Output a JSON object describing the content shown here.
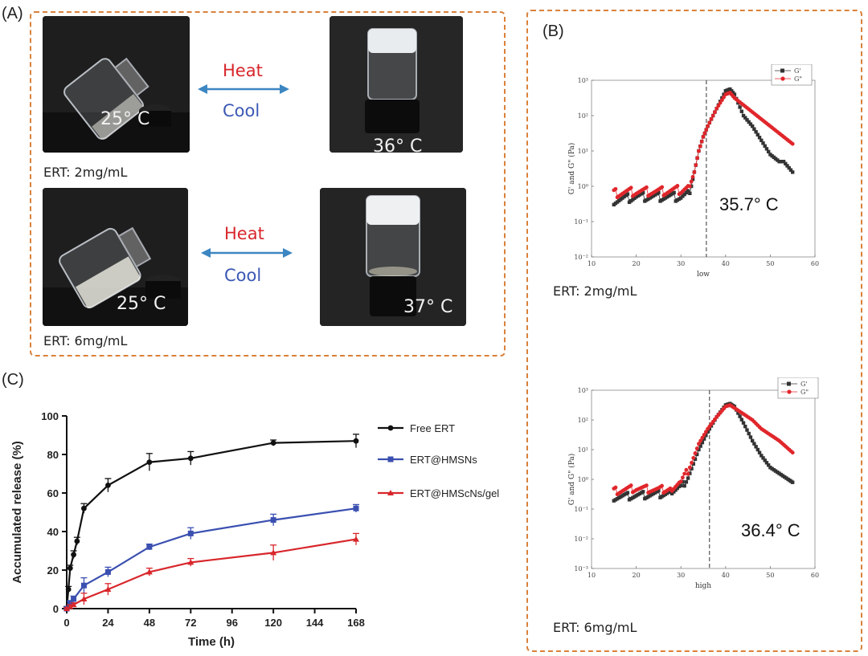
{
  "panel_a": {
    "letter": "(A)",
    "row1": {
      "left_temp": "25° C",
      "right_temp": "36° C",
      "heat": "Heat",
      "cool": "Cool",
      "concentration": "ERT: 2mg/mL"
    },
    "row2": {
      "left_temp": "25° C",
      "right_temp": "37° C",
      "heat": "Heat",
      "cool": "Cool",
      "concentration": "ERT: 6mg/mL"
    },
    "colors": {
      "heat": "#d8262b",
      "cool": "#3a58b4",
      "arrow": "#3c86c2",
      "border": "#d9813a"
    }
  },
  "panel_b": {
    "letter": "(B)"
  },
  "panel_c": {
    "letter": "(C)"
  },
  "chart_data": [
    {
      "type": "line",
      "panel": "C",
      "xlabel": "Time (h)",
      "ylabel": "Accumulated release (%)",
      "xlim": [
        0,
        168
      ],
      "ylim": [
        0,
        100
      ],
      "xticks": [
        0,
        24,
        48,
        72,
        96,
        120,
        144,
        168
      ],
      "yticks": [
        0,
        20,
        40,
        60,
        80,
        100
      ],
      "legend_position": "right",
      "series": [
        {
          "name": "Free ERT",
          "color": "#111111",
          "marker": "circle",
          "x": [
            0,
            1,
            2,
            4,
            6,
            10,
            24,
            48,
            72,
            120,
            168
          ],
          "y": [
            0,
            10,
            21,
            28,
            35,
            52,
            64,
            76,
            78,
            86,
            87
          ],
          "err": [
            1,
            1.5,
            1.5,
            2,
            2,
            2.5,
            3.5,
            4.5,
            3.5,
            1.5,
            3.5
          ]
        },
        {
          "name": "ERT@HMSNs",
          "color": "#3a4fb0",
          "marker": "square",
          "x": [
            0,
            2,
            4,
            10,
            24,
            48,
            72,
            120,
            168
          ],
          "y": [
            0,
            3,
            5,
            12,
            19,
            32,
            39,
            46,
            52
          ],
          "err": [
            0.5,
            1,
            1.5,
            4,
            2.5,
            1.5,
            3,
            3,
            2
          ]
        },
        {
          "name": "ERT@HMScNs/gel",
          "color": "#d8262b",
          "marker": "triangle",
          "x": [
            0,
            2,
            4,
            10,
            24,
            48,
            72,
            120,
            168
          ],
          "y": [
            0,
            1,
            2,
            5,
            10,
            19,
            24,
            29,
            36
          ],
          "err": [
            0.5,
            1,
            1,
            3,
            3,
            2,
            2,
            4,
            3
          ]
        }
      ]
    },
    {
      "type": "scatter",
      "panel": "B-top",
      "xlabel": "low",
      "ylabel": "G' and G\" (Pa)",
      "xlim": [
        10,
        60
      ],
      "xticks": [
        10,
        20,
        30,
        40,
        50,
        60
      ],
      "yscale": "log",
      "ylim_exp": [
        -2,
        3
      ],
      "ytick_labels": [
        "10⁻²",
        "10⁻¹",
        "10⁰",
        "10¹",
        "10²",
        "10³"
      ],
      "vline_x": 35.7,
      "annotation": "35.7° C",
      "footer": "ERT: 2mg/mL",
      "legend": [
        "G'",
        "G\""
      ],
      "series": [
        {
          "name": "G'",
          "color": "#333333",
          "x": [
            15,
            20,
            25,
            30,
            32,
            33,
            34,
            35,
            36,
            38,
            40,
            41,
            42,
            44,
            46,
            48,
            50,
            52,
            53,
            55
          ],
          "logy": [
            -0.4,
            -0.3,
            -0.3,
            -0.3,
            -0.2,
            0.4,
            1.0,
            1.4,
            1.7,
            2.2,
            2.7,
            2.75,
            2.6,
            2.0,
            1.7,
            1.3,
            0.9,
            0.7,
            0.7,
            0.4
          ]
        },
        {
          "name": "G\"",
          "color": "#e0262b",
          "x": [
            15,
            20,
            25,
            30,
            32,
            33,
            34,
            35,
            36,
            38,
            40,
            41,
            42,
            44,
            46,
            48,
            50,
            52,
            55
          ],
          "logy": [
            -0.2,
            -0.15,
            -0.15,
            -0.1,
            0.0,
            0.4,
            1.0,
            1.4,
            1.7,
            2.2,
            2.6,
            2.65,
            2.5,
            2.3,
            2.1,
            1.9,
            1.7,
            1.5,
            1.2
          ]
        }
      ]
    },
    {
      "type": "scatter",
      "panel": "B-bottom",
      "xlabel": "high",
      "ylabel": "G' and G\" (Pa)",
      "xlim": [
        10,
        60
      ],
      "xticks": [
        10,
        20,
        30,
        40,
        50,
        60
      ],
      "yscale": "log",
      "ylim_exp": [
        -3,
        3
      ],
      "ytick_labels": [
        "10⁻³",
        "10⁻²",
        "10⁻¹",
        "10⁰",
        "10¹",
        "10²",
        "10³"
      ],
      "vline_x": 36.4,
      "annotation": "36.4° C",
      "footer": "ERT: 6mg/mL",
      "legend": [
        "G'",
        "G\""
      ],
      "series": [
        {
          "name": "G'",
          "color": "#333333",
          "x": [
            15,
            20,
            25,
            28,
            30,
            32,
            34,
            36,
            38,
            40,
            41,
            42,
            44,
            46,
            48,
            50,
            52,
            54,
            55
          ],
          "logy": [
            -0.6,
            -0.55,
            -0.5,
            -0.45,
            -0.3,
            0.2,
            1.0,
            1.6,
            2.1,
            2.5,
            2.55,
            2.45,
            1.9,
            1.3,
            0.8,
            0.4,
            0.2,
            0.0,
            -0.1
          ]
        },
        {
          "name": "G\"",
          "color": "#e0262b",
          "x": [
            15,
            20,
            25,
            28,
            30,
            32,
            34,
            36,
            38,
            40,
            41,
            42,
            44,
            46,
            48,
            50,
            52,
            55
          ],
          "logy": [
            -0.4,
            -0.3,
            -0.35,
            -0.3,
            -0.1,
            0.4,
            1.2,
            1.7,
            2.1,
            2.45,
            2.5,
            2.4,
            2.2,
            2.0,
            1.7,
            1.5,
            1.3,
            0.9
          ]
        }
      ]
    }
  ]
}
